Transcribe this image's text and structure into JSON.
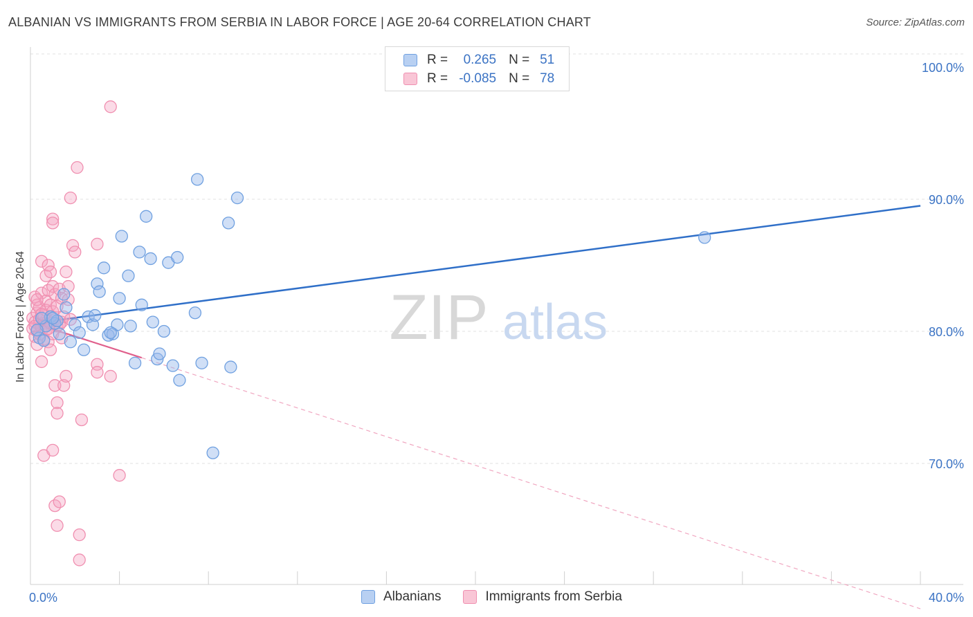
{
  "title": "ALBANIAN VS IMMIGRANTS FROM SERBIA IN LABOR FORCE | AGE 20-64 CORRELATION CHART",
  "source": "Source: ZipAtlas.com",
  "watermark": {
    "zip": "ZIP",
    "atlas": "atlas"
  },
  "legend": {
    "r_label": "R =",
    "n_label": "N =",
    "rows": [
      {
        "name": "Albanians",
        "r": "0.265",
        "n": "51"
      },
      {
        "name": "Immigrants from Serbia",
        "r": "-0.085",
        "n": "78"
      }
    ]
  },
  "chart_data": {
    "type": "scatter",
    "title": "ALBANIAN VS IMMIGRANTS FROM SERBIA IN LABOR FORCE | AGE 20-64 CORRELATION CHART",
    "xlabel": "",
    "ylabel": "In Labor Force | Age 20-64",
    "xlim": [
      0,
      40
    ],
    "ylim": [
      62,
      102
    ],
    "x_tick_labels": [
      {
        "value": 0,
        "label": "0.0%"
      },
      {
        "value": 40,
        "label": "40.0%"
      }
    ],
    "y_tick_labels": [
      {
        "value": 100,
        "label": "100.0%"
      },
      {
        "value": 90,
        "label": "90.0%"
      },
      {
        "value": 80,
        "label": "80.0%"
      },
      {
        "value": 70,
        "label": "70.0%"
      }
    ],
    "grid": true,
    "legend_position": "top-center",
    "series": [
      {
        "name": "Albanians",
        "color": "#6fa0e0",
        "line_color": "#2f6fc8",
        "trend": {
          "x0": 1.0,
          "y0": 80.8,
          "x1": 40.0,
          "y1": 89.5
        },
        "points": [
          [
            0.4,
            79.5
          ],
          [
            0.7,
            80.4
          ],
          [
            0.9,
            81.1
          ],
          [
            1.1,
            80.6
          ],
          [
            1.3,
            79.8
          ],
          [
            1.5,
            82.8
          ],
          [
            1.6,
            81.8
          ],
          [
            1.8,
            79.2
          ],
          [
            2.0,
            80.5
          ],
          [
            2.2,
            79.9
          ],
          [
            2.4,
            78.6
          ],
          [
            2.6,
            81.1
          ],
          [
            2.8,
            80.5
          ],
          [
            3.0,
            83.6
          ],
          [
            3.1,
            83.0
          ],
          [
            3.3,
            84.8
          ],
          [
            3.5,
            79.7
          ],
          [
            3.7,
            79.8
          ],
          [
            3.9,
            80.5
          ],
          [
            4.0,
            82.5
          ],
          [
            4.1,
            87.2
          ],
          [
            4.4,
            84.2
          ],
          [
            4.5,
            80.4
          ],
          [
            4.7,
            77.6
          ],
          [
            4.9,
            86.0
          ],
          [
            5.0,
            82.0
          ],
          [
            5.2,
            88.7
          ],
          [
            5.4,
            85.5
          ],
          [
            5.5,
            80.7
          ],
          [
            5.7,
            77.9
          ],
          [
            5.8,
            78.3
          ],
          [
            6.0,
            80.0
          ],
          [
            6.2,
            85.2
          ],
          [
            6.4,
            77.4
          ],
          [
            6.6,
            85.6
          ],
          [
            6.7,
            76.3
          ],
          [
            7.4,
            81.4
          ],
          [
            7.5,
            91.5
          ],
          [
            7.7,
            77.6
          ],
          [
            8.2,
            70.8
          ],
          [
            8.9,
            88.2
          ],
          [
            9.0,
            77.3
          ],
          [
            9.3,
            90.1
          ],
          [
            30.3,
            87.1
          ],
          [
            0.3,
            80.1
          ],
          [
            0.5,
            81.0
          ],
          [
            1.2,
            80.8
          ],
          [
            2.9,
            81.2
          ],
          [
            3.6,
            79.9
          ],
          [
            1.0,
            81.0
          ],
          [
            0.6,
            79.3
          ]
        ]
      },
      {
        "name": "Immigrants from Serbia",
        "color": "#f08fb0",
        "line_color": "#e0608c",
        "trend": {
          "x0": 0.0,
          "y0": 80.7,
          "x1": 5.0,
          "y1": 78.0
        },
        "trend_dashed": {
          "x0": 5.0,
          "y0": 78.0,
          "x1": 40.0,
          "y1": 59.0
        },
        "points": [
          [
            0.1,
            80.2
          ],
          [
            0.1,
            81.0
          ],
          [
            0.2,
            79.6
          ],
          [
            0.2,
            80.7
          ],
          [
            0.2,
            82.6
          ],
          [
            0.3,
            80.0
          ],
          [
            0.3,
            81.4
          ],
          [
            0.3,
            79.0
          ],
          [
            0.3,
            82.0
          ],
          [
            0.4,
            80.5
          ],
          [
            0.4,
            81.8
          ],
          [
            0.4,
            79.8
          ],
          [
            0.4,
            80.9
          ],
          [
            0.5,
            85.3
          ],
          [
            0.5,
            82.9
          ],
          [
            0.5,
            80.3
          ],
          [
            0.5,
            77.7
          ],
          [
            0.6,
            80.6
          ],
          [
            0.6,
            81.2
          ],
          [
            0.6,
            79.4
          ],
          [
            0.6,
            70.6
          ],
          [
            0.7,
            84.2
          ],
          [
            0.7,
            82.3
          ],
          [
            0.7,
            80.1
          ],
          [
            0.7,
            81.6
          ],
          [
            0.8,
            83.1
          ],
          [
            0.8,
            80.8
          ],
          [
            0.8,
            79.2
          ],
          [
            0.8,
            85.0
          ],
          [
            0.9,
            84.5
          ],
          [
            0.9,
            82.0
          ],
          [
            0.9,
            80.6
          ],
          [
            0.9,
            78.6
          ],
          [
            1.0,
            81.5
          ],
          [
            1.0,
            83.4
          ],
          [
            1.0,
            79.8
          ],
          [
            1.0,
            71.0
          ],
          [
            1.0,
            88.5
          ],
          [
            1.0,
            88.2
          ],
          [
            1.1,
            82.8
          ],
          [
            1.1,
            80.9
          ],
          [
            1.1,
            75.9
          ],
          [
            1.1,
            66.8
          ],
          [
            1.2,
            81.9
          ],
          [
            1.2,
            80.4
          ],
          [
            1.2,
            74.6
          ],
          [
            1.2,
            73.8
          ],
          [
            1.2,
            65.3
          ],
          [
            1.3,
            83.2
          ],
          [
            1.3,
            67.1
          ],
          [
            1.4,
            82.5
          ],
          [
            1.4,
            80.7
          ],
          [
            1.5,
            75.9
          ],
          [
            1.5,
            81.1
          ],
          [
            1.6,
            84.5
          ],
          [
            1.6,
            76.6
          ],
          [
            1.7,
            82.4
          ],
          [
            1.7,
            83.4
          ],
          [
            1.8,
            80.9
          ],
          [
            1.8,
            90.1
          ],
          [
            1.9,
            86.5
          ],
          [
            2.0,
            86.0
          ],
          [
            2.1,
            92.4
          ],
          [
            2.2,
            64.6
          ],
          [
            2.2,
            62.7
          ],
          [
            2.3,
            73.3
          ],
          [
            3.0,
            86.6
          ],
          [
            3.0,
            77.5
          ],
          [
            3.0,
            76.9
          ],
          [
            3.6,
            97.0
          ],
          [
            3.6,
            76.6
          ],
          [
            4.0,
            69.1
          ],
          [
            0.2,
            80.4
          ],
          [
            0.5,
            81.3
          ],
          [
            0.8,
            80.2
          ],
          [
            1.4,
            79.5
          ],
          [
            0.3,
            82.4
          ],
          [
            1.3,
            80.5
          ]
        ]
      }
    ]
  }
}
